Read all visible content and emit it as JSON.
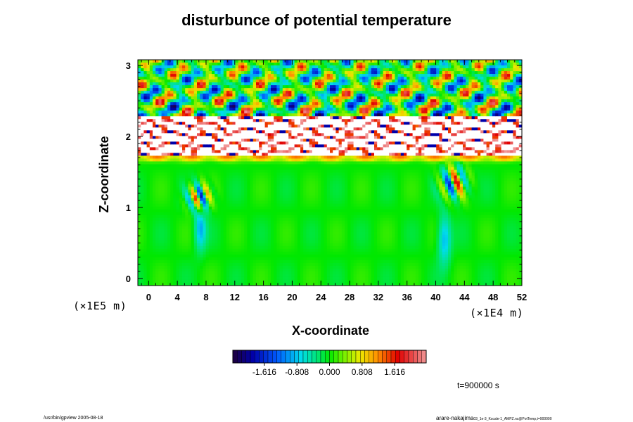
{
  "chart_data": {
    "type": "heatmap",
    "title": "disturbunce of potential temperature",
    "xlabel": "X-coordinate",
    "ylabel": "Z-coordinate",
    "x_unit": "(×1E4 m)",
    "y_unit": "(×1E5 m)",
    "xlim": [
      -1.5,
      52
    ],
    "ylim": [
      -0.1,
      3.08
    ],
    "x_ticks": [
      "0",
      "4",
      "8",
      "12",
      "16",
      "20",
      "24",
      "28",
      "32",
      "36",
      "40",
      "44",
      "48",
      "52"
    ],
    "x_tick_values": [
      0,
      4,
      8,
      12,
      16,
      20,
      24,
      28,
      32,
      36,
      40,
      44,
      48,
      52
    ],
    "y_ticks": [
      "0",
      "1",
      "2",
      "3"
    ],
    "y_tick_values": [
      0,
      1,
      2,
      3
    ],
    "colorbar": {
      "ticks": [
        "-1.616",
        "-0.808",
        "0.000",
        "0.808",
        "1.616"
      ],
      "tick_values": [
        -1.616,
        -0.808,
        0.0,
        0.808,
        1.616
      ],
      "range": [
        -2.4,
        2.4
      ]
    },
    "features": [
      {
        "region": "z 0 to 1.7",
        "value": "near 0.000 (green) with small warm/cool convective plumes near x≈7 and x≈42"
      },
      {
        "region": "z ≈ 1.7",
        "value": "warm band ≈ 1.2 (orange-red)"
      },
      {
        "region": "z 1.75 to 2.3",
        "value": "saturated values (white) with strong oscillations"
      },
      {
        "region": "z 2.3 to 3.0",
        "value": "wave pattern alternating ≈ -1.6 and ≈ +1.6"
      }
    ]
  },
  "time_label": "t=900000 s",
  "footer": {
    "left": "/usr/bin/gpview 2005-08-18",
    "right_main": "arare-nakajima",
    "right_sub": "03_1e-3_Kscale-1_AMPZ.nc@PotTemp,t=900000"
  },
  "colors": {
    "zero": "#00ee00",
    "negative_extreme": "#220044",
    "positive_extreme": "#ee8888",
    "saturated": "#ffffff"
  }
}
